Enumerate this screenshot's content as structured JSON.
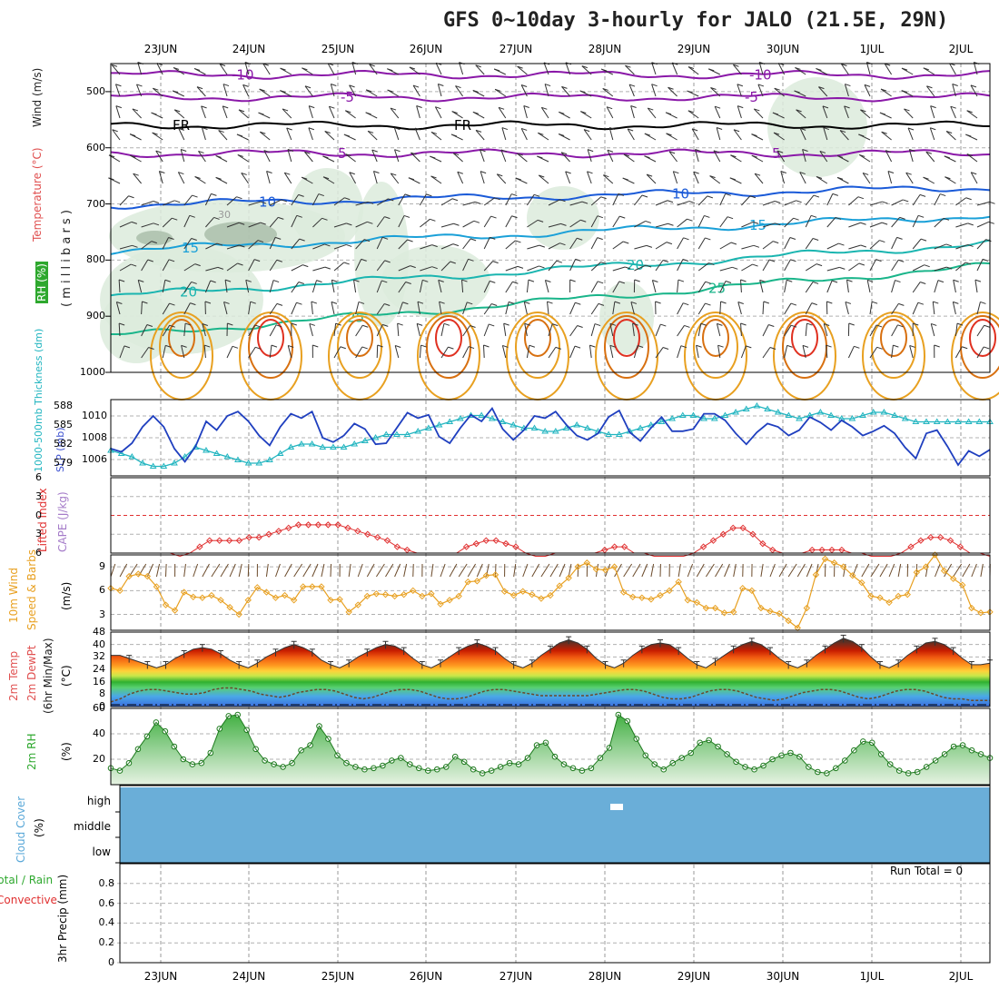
{
  "title": "GFS 0~10day 3-hourly for JALO (21.5E, 29N)",
  "dates": [
    "23JUN",
    "24JUN",
    "25JUN",
    "26JUN",
    "27JUN",
    "28JUN",
    "29JUN",
    "30JUN",
    "1JUL",
    "2JUL"
  ],
  "run_total": "Run Total = 0",
  "panel_labels": {
    "upper_wind": "Wind (m/s)",
    "upper_temp": "Temperature (°C)",
    "upper_rh": "RH (%)",
    "upper_axis": "( m i l l i b a r s )",
    "slp": "SLP (mb)",
    "thickness": "1000-500mb Thickness (dm)",
    "cape": "CAPE (J/kg)",
    "li": "Lifted Index",
    "wind10": "10m Wind",
    "wind10b": "Speed & Barbs",
    "wind10u": "(m/s)",
    "temp2m": "2m Temp",
    "dew2m": "2m DewPt",
    "temp_minmax": "(6hr Min/Max)",
    "temp_unit": "(°C)",
    "rh2m": "2m RH",
    "rh_unit": "(%)",
    "cloud": "Cloud Cover",
    "cloud_unit": "(%)",
    "precip_a": "Total / Rain",
    "precip_b": "Convective",
    "precip_c": "3hr Precip (mm)"
  },
  "colors": {
    "slp": "#1f3fbf",
    "thick": "#22b5c0",
    "li": "#e03030",
    "wind": "#e8a020",
    "barb": "#6b4a2a",
    "temp": "#cc2000",
    "rh": "#2e9e2e",
    "cloud": "#6aaed8"
  },
  "chart_data": [
    {
      "type": "contour",
      "name": "upper-air",
      "ylabel": "millibars",
      "y_ticks": [
        "500",
        "600",
        "700",
        "800",
        "900",
        "1000"
      ],
      "ylim": [
        450,
        1000
      ],
      "temperature_isotherms": [
        {
          "label": "-10",
          "pressure": 470
        },
        {
          "label": "-5",
          "pressure": 510
        },
        {
          "label": "FR",
          "pressure": 560
        },
        {
          "label": "5",
          "pressure": 610
        },
        {
          "label": "10",
          "pressure": 690
        },
        {
          "label": "15",
          "pressure": 740
        },
        {
          "label": "20",
          "pressure": 790
        },
        {
          "label": "25",
          "pressure": 830
        }
      ],
      "contour_labels": [
        "-10",
        "-5",
        "FR",
        "5",
        "10",
        "15",
        "20",
        "25",
        "30"
      ]
    },
    {
      "type": "line",
      "name": "slp-thickness",
      "slp_ticks": [
        "1010",
        "1008",
        "1006"
      ],
      "thick_ticks": [
        "588",
        "585",
        "582",
        "579"
      ],
      "slp_range": [
        1004.5,
        1011.5
      ],
      "thick_range": [
        577,
        589
      ],
      "slp": [
        1007,
        1006.7,
        1007.5,
        1009,
        1010,
        1009,
        1007,
        1005.8,
        1007.2,
        1009.5,
        1008.7,
        1010,
        1010.4,
        1009.5,
        1008.2,
        1007.3,
        1009,
        1010.2,
        1009.8,
        1010.4,
        1008,
        1007.6,
        1008.2,
        1009.3,
        1008.8,
        1007.4,
        1007.5,
        1008.9,
        1010.3,
        1009.8,
        1010.1,
        1008.1,
        1007.5,
        1008.9,
        1010.1,
        1009.5,
        1010.7,
        1008.8,
        1007.8,
        1008.7,
        1010,
        1009.8,
        1010.4,
        1009.2,
        1008.2,
        1007.8,
        1008.4,
        1009.9,
        1010.5,
        1008.5,
        1007.7,
        1008.9,
        1009.9,
        1008.6,
        1008.6,
        1008.8,
        1010.2,
        1010.2,
        1009.6,
        1008.4,
        1007.4,
        1008.5,
        1009.3,
        1009,
        1008.2,
        1008.7,
        1009.9,
        1009.4,
        1008.7,
        1009.6,
        1009,
        1008.2,
        1008.6,
        1009.1,
        1008.4,
        1007.1,
        1006.1,
        1008.4,
        1008.7,
        1007.2,
        1005.5,
        1006.8,
        1006.3,
        1006.9
      ],
      "thickness": [
        581,
        580.5,
        580,
        579,
        578.5,
        578.5,
        579,
        580,
        581.5,
        581,
        580.5,
        580,
        579.5,
        579,
        579,
        579.5,
        580.5,
        581.5,
        582,
        582,
        581.5,
        581.5,
        581.5,
        582,
        582.5,
        583,
        583.5,
        583.5,
        583.5,
        584,
        584.5,
        585,
        585.5,
        586,
        586.5,
        586.5,
        586,
        585.5,
        585,
        584.5,
        584.5,
        584,
        584,
        584.5,
        585,
        584.5,
        584,
        583.5,
        583.5,
        584,
        584.5,
        585,
        585.5,
        586,
        586.5,
        586.5,
        586,
        586,
        586.5,
        587,
        587.5,
        588,
        587.5,
        587,
        586.5,
        586,
        586.5,
        587,
        586.5,
        586,
        586,
        586.5,
        587,
        587,
        586.5,
        586,
        585.5,
        585.5,
        585.5,
        585.5,
        585.5,
        585.5,
        585.5,
        585.5
      ]
    },
    {
      "type": "line",
      "name": "lifted-index",
      "y_ticks": [
        "-6",
        "-3",
        "0",
        "3",
        "6"
      ],
      "ylim": [
        -6,
        6
      ],
      "values": [
        6,
        6,
        6,
        6,
        6,
        6,
        6,
        6.5,
        6,
        5,
        4,
        4,
        4,
        4,
        3.5,
        3.5,
        3,
        2.5,
        2,
        1.5,
        1.5,
        1.5,
        1.5,
        1.5,
        2,
        2.5,
        3,
        3.5,
        4,
        5,
        5.5,
        6,
        6,
        6,
        6,
        6,
        5,
        4.5,
        4,
        4,
        4.5,
        5,
        6,
        6.5,
        6.5,
        6,
        6,
        6,
        6,
        6,
        5.5,
        5,
        5,
        6,
        6,
        6.5,
        6.5,
        6.5,
        6.5,
        6,
        5,
        4,
        3,
        2,
        2,
        3,
        4.5,
        5.5,
        6,
        6,
        6,
        5.5,
        5.5,
        5.5,
        5.5,
        6,
        6,
        6.5,
        6.5,
        6.5,
        6,
        5,
        4,
        3.5,
        3.5,
        4,
        5,
        6,
        6,
        6.5
      ]
    },
    {
      "type": "line",
      "name": "10m-wind",
      "y_ticks": [
        "3",
        "6",
        "9"
      ],
      "ylim": [
        1,
        10.5
      ],
      "values": [
        6.3,
        6,
        7.8,
        8.1,
        7.8,
        6.5,
        4.2,
        3.5,
        5.8,
        5.2,
        5.1,
        5.4,
        4.8,
        3.9,
        3,
        4.8,
        6.4,
        5.8,
        5.1,
        5.4,
        4.8,
        6.5,
        6.5,
        6.5,
        4.8,
        4.9,
        3.3,
        4.2,
        5.3,
        5.6,
        5.5,
        5.3,
        5.5,
        6,
        5.3,
        5.6,
        4.3,
        4.8,
        5.3,
        7.1,
        7.2,
        7.9,
        8,
        5.9,
        5.4,
        5.9,
        5.5,
        5,
        5.4,
        6.6,
        7.6,
        9,
        9.5,
        8.7,
        8.6,
        9,
        5.8,
        5.2,
        5.1,
        4.9,
        5.4,
        6,
        7.1,
        4.8,
        4.5,
        3.8,
        3.8,
        3.2,
        3.3,
        6.3,
        6,
        3.8,
        3.4,
        3.1,
        2.2,
        1.3,
        3.8,
        8,
        10,
        9.5,
        9,
        7.9,
        7,
        5.3,
        5.1,
        4.5,
        5.3,
        5.5,
        8.3,
        9,
        10.5,
        8.5,
        7.5,
        6.7,
        3.8,
        3.2,
        3.3
      ]
    },
    {
      "type": "area",
      "name": "2m-temp",
      "y_ticks": [
        "0",
        "8",
        "16",
        "24",
        "32",
        "40",
        "48"
      ],
      "ylim": [
        0,
        48
      ],
      "temp": [
        33,
        33,
        31,
        29,
        27,
        25,
        27,
        31,
        34,
        37,
        38,
        37,
        34,
        30,
        27,
        25,
        28,
        32,
        35,
        38,
        40,
        38,
        35,
        30,
        27,
        25,
        28,
        32,
        35,
        38,
        40,
        39,
        36,
        31,
        27,
        25,
        28,
        32,
        36,
        39,
        41,
        39,
        36,
        31,
        27,
        25,
        28,
        33,
        37,
        41,
        43,
        41,
        37,
        31,
        27,
        25,
        28,
        33,
        37,
        40,
        41,
        40,
        36,
        31,
        27,
        25,
        29,
        33,
        37,
        40,
        42,
        40,
        36,
        31,
        27,
        25,
        28,
        33,
        37,
        41,
        44,
        42,
        38,
        32,
        27,
        25,
        28,
        33,
        37,
        41,
        42,
        40,
        36,
        31,
        27,
        27,
        28
      ],
      "dewpt": [
        3,
        5,
        8,
        10,
        11,
        11,
        10,
        9,
        8,
        8,
        9,
        11,
        12,
        12,
        11,
        10,
        8,
        7,
        6,
        7,
        9,
        10,
        11,
        11,
        10,
        8,
        6,
        5,
        6,
        8,
        10,
        11,
        11,
        10,
        8,
        6,
        5,
        5,
        6,
        8,
        10,
        11,
        11,
        10,
        9,
        8,
        7,
        7,
        7,
        7,
        7,
        7,
        8,
        9,
        10,
        11,
        11,
        10,
        8,
        6,
        5,
        5,
        6,
        8,
        10,
        11,
        11,
        10,
        8,
        6,
        5,
        4,
        5,
        7,
        9,
        10,
        11,
        11,
        10,
        8,
        6,
        5,
        6,
        8,
        10,
        11,
        11,
        10,
        8,
        6,
        5,
        5,
        4,
        4,
        4
      ]
    },
    {
      "type": "area",
      "name": "2m-rh",
      "y_ticks": [
        "20",
        "40",
        "60"
      ],
      "ylim": [
        0,
        60
      ],
      "values": [
        13,
        11,
        17,
        28,
        38,
        49,
        42,
        30,
        20,
        16,
        17,
        25,
        44,
        54,
        55,
        43,
        28,
        19,
        16,
        14,
        17,
        27,
        31,
        46,
        36,
        23,
        17,
        14,
        12,
        13,
        15,
        19,
        21,
        16,
        13,
        11,
        12,
        14,
        22,
        18,
        12,
        9,
        11,
        14,
        17,
        16,
        21,
        31,
        33,
        22,
        16,
        13,
        11,
        13,
        21,
        29,
        55,
        50,
        36,
        23,
        16,
        12,
        17,
        21,
        25,
        33,
        35,
        30,
        24,
        18,
        14,
        12,
        15,
        20,
        23,
        25,
        22,
        14,
        10,
        9,
        13,
        19,
        27,
        34,
        33,
        24,
        16,
        11,
        9,
        10,
        14,
        19,
        24,
        30,
        31,
        27,
        24,
        21
      ]
    },
    {
      "type": "heatmap",
      "name": "cloud-cover",
      "categories": [
        "high",
        "middle",
        "low"
      ]
    },
    {
      "type": "bar",
      "name": "precip",
      "y_ticks": [
        "0",
        "0.2",
        "0.4",
        "0.6",
        "0.8"
      ],
      "ylim": [
        0,
        1
      ],
      "values": [
        0,
        0,
        0,
        0,
        0,
        0,
        0,
        0,
        0,
        0
      ]
    }
  ]
}
